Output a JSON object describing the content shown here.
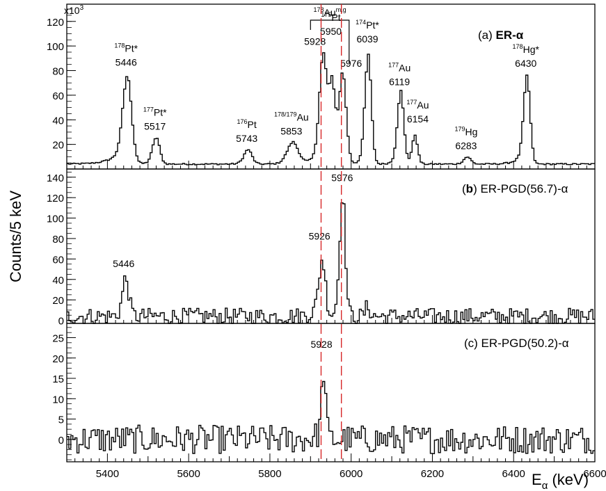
{
  "figure": {
    "ylabel": "Counts/5 keV",
    "xlabel_main": "E",
    "xlabel_sub": "α",
    "xlabel_unit": " (keV)",
    "colors": {
      "histogram": "#000000",
      "dashed_line": "#d62728",
      "frame": "#000000"
    }
  },
  "chart_data": [
    {
      "type": "histogram",
      "panel": "a",
      "title_prefix": "(a) ",
      "title_bold": "ER-α",
      "scale_label_base": "x10",
      "scale_label_exp": "3",
      "xlim": [
        5300,
        6600
      ],
      "ylim": [
        0,
        134
      ],
      "yticks": [
        20,
        40,
        60,
        80,
        100,
        120
      ],
      "peaks": [
        {
          "center": 5446,
          "height": 72,
          "width": 11,
          "tail": 28
        },
        {
          "center": 5517,
          "height": 22,
          "width": 9,
          "tail": 12
        },
        {
          "center": 5743,
          "height": 12,
          "width": 10,
          "tail": 12
        },
        {
          "center": 5853,
          "height": 18,
          "width": 14,
          "tail": 14
        },
        {
          "center": 5928,
          "height": 88,
          "width": 9,
          "tail": 16
        },
        {
          "center": 5950,
          "height": 65,
          "width": 8,
          "tail": 10
        },
        {
          "center": 5976,
          "height": 76,
          "width": 9,
          "tail": 10
        },
        {
          "center": 6039,
          "height": 90,
          "width": 8,
          "tail": 10
        },
        {
          "center": 6119,
          "height": 60,
          "width": 8,
          "tail": 10
        },
        {
          "center": 6154,
          "height": 24,
          "width": 7,
          "tail": 6
        },
        {
          "center": 6283,
          "height": 6,
          "width": 9,
          "tail": 10
        },
        {
          "center": 6430,
          "height": 72,
          "width": 8,
          "tail": 16
        }
      ],
      "baseline": 4,
      "annotations": [
        {
          "mass": "178",
          "element": "Pt*",
          "energy": "5446",
          "x": 5446,
          "y": 84
        },
        {
          "mass": "177",
          "element": "Pt*",
          "energy": "5517",
          "x": 5517,
          "y": 32
        },
        {
          "mass": "176",
          "element": "Pt",
          "energy": "5743",
          "x": 5743,
          "y": 22
        },
        {
          "mass": "178/179",
          "element": "Au",
          "energy": "5853",
          "x": 5853,
          "y": 28
        },
        {
          "mass": "",
          "element": "",
          "energy": "5928",
          "x": 5911,
          "y": 101
        },
        {
          "mass": "175",
          "element": "Pt",
          "energy": "5950",
          "x": 5950,
          "y": 109
        },
        {
          "mass": "",
          "element": "",
          "energy": "5976",
          "x": 6000,
          "y": 83
        },
        {
          "mass": "174",
          "element": "Pt*",
          "energy": "6039",
          "x": 6040,
          "y": 103
        },
        {
          "mass": "177",
          "element": "Au",
          "energy": "6119",
          "x": 6119,
          "y": 68
        },
        {
          "mass": "177",
          "element": "Au",
          "energy": "6154",
          "x": 6164,
          "y": 38
        },
        {
          "mass": "179",
          "element": "Hg",
          "energy": "6283",
          "x": 6283,
          "y": 16
        },
        {
          "mass": "178",
          "element": "Hg*",
          "energy": "6430",
          "x": 6430,
          "y": 83
        }
      ],
      "bracket": {
        "mass": "178",
        "element": "Au",
        "sup_right": "m,g",
        "x_from": 5900,
        "x_to": 5995,
        "y": 121
      }
    },
    {
      "type": "histogram",
      "panel": "b",
      "title_prefix": "(",
      "title_bold": "b",
      "title_rest": ") ER-PGD(56.7)-α",
      "xlim": [
        5300,
        6600
      ],
      "ylim": [
        -3,
        148
      ],
      "yticks": [
        0,
        20,
        40,
        60,
        80,
        100,
        120,
        140
      ],
      "peaks": [
        {
          "center": 5442,
          "height": 38,
          "width": 8,
          "tail": 8
        },
        {
          "center": 5926,
          "height": 56,
          "width": 8,
          "tail": 18
        },
        {
          "center": 5976,
          "height": 122,
          "width": 7,
          "tail": 10
        },
        {
          "center": 6038,
          "height": 10,
          "width": 6,
          "tail": 4
        }
      ],
      "baseline": 4,
      "noise": 5,
      "annotations": [
        {
          "mass": "",
          "element": "",
          "energy": "5446",
          "x": 5440,
          "y": 52
        },
        {
          "mass": "",
          "element": "",
          "energy": "5926",
          "x": 5922,
          "y": 79
        },
        {
          "mass": "",
          "element": "",
          "energy": "5976",
          "x": 5978,
          "y": 136
        }
      ]
    },
    {
      "type": "histogram",
      "panel": "c",
      "title_prefix": "(c) ER-PGD(50.2)-α",
      "title_bold": "",
      "xlim": [
        5300,
        6600
      ],
      "ylim": [
        -5.5,
        28.5
      ],
      "yticks": [
        0,
        5,
        10,
        15,
        20,
        25
      ],
      "xticks": [
        5400,
        5600,
        5800,
        6000,
        6200,
        6400,
        6600
      ],
      "peaks": [
        {
          "center": 5930,
          "height": 17,
          "width": 5,
          "tail": 12
        }
      ],
      "baseline": 0,
      "noise": 2.2,
      "annotations": [
        {
          "mass": "",
          "element": "",
          "energy": "5928",
          "x": 5927,
          "y": 22.5
        }
      ]
    }
  ],
  "reference_lines": [
    5926,
    5976
  ]
}
